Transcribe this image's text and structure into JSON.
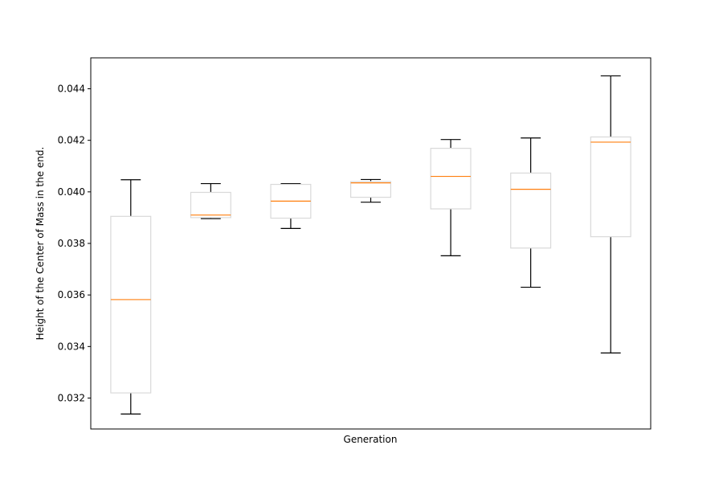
{
  "chart_data": {
    "type": "box",
    "title": "",
    "xlabel": "Generation",
    "ylabel": "Height of the Center of Mass in the end.",
    "ylim": [
      0.0308,
      0.0452
    ],
    "yticks": [
      0.032,
      0.034,
      0.036,
      0.038,
      0.04,
      0.042,
      0.044
    ],
    "ytick_labels": [
      "0.032",
      "0.034",
      "0.036",
      "0.038",
      "0.040",
      "0.042",
      "0.044"
    ],
    "xticks_visible": false,
    "grid": false,
    "boxes": [
      {
        "whisker_low": 0.03138,
        "q1": 0.0322,
        "median": 0.03582,
        "q3": 0.03905,
        "whisker_high": 0.04047
      },
      {
        "whisker_low": 0.03896,
        "q1": 0.039,
        "median": 0.0391,
        "q3": 0.03998,
        "whisker_high": 0.04032
      },
      {
        "whisker_low": 0.03858,
        "q1": 0.03898,
        "median": 0.03964,
        "q3": 0.04029,
        "whisker_high": 0.04032
      },
      {
        "whisker_low": 0.0396,
        "q1": 0.03979,
        "median": 0.04035,
        "q3": 0.0404,
        "whisker_high": 0.04048
      },
      {
        "whisker_low": 0.03752,
        "q1": 0.03934,
        "median": 0.0406,
        "q3": 0.04169,
        "whisker_high": 0.04203
      },
      {
        "whisker_low": 0.0363,
        "q1": 0.03782,
        "median": 0.0401,
        "q3": 0.04073,
        "whisker_high": 0.04209
      },
      {
        "whisker_low": 0.03375,
        "q1": 0.03826,
        "median": 0.04193,
        "q3": 0.04213,
        "whisker_high": 0.0445
      }
    ],
    "colors": {
      "box": "#d9d9d9",
      "median": "#ff7f0e",
      "whisker": "#000000",
      "axes": "#000000"
    }
  }
}
